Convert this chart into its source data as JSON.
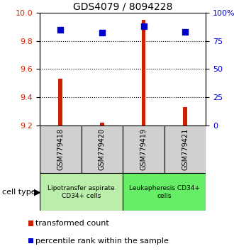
{
  "title": "GDS4079 / 8094228",
  "samples": [
    "GSM779418",
    "GSM779420",
    "GSM779419",
    "GSM779421"
  ],
  "transformed_counts": [
    9.53,
    9.22,
    9.95,
    9.33
  ],
  "percentile_ranks": [
    85,
    82,
    88,
    83
  ],
  "y_min": 9.2,
  "y_max": 10.0,
  "y_ticks": [
    9.2,
    9.4,
    9.6,
    9.8,
    10.0
  ],
  "y2_ticks": [
    0,
    25,
    50,
    75,
    100
  ],
  "y2_tick_labels": [
    "0",
    "25",
    "50",
    "75",
    "100%"
  ],
  "gridlines": [
    9.4,
    9.6,
    9.8
  ],
  "bar_color": "#cc2200",
  "dot_color": "#0000cc",
  "cell_types": [
    {
      "label": "Lipotransfer aspirate\nCD34+ cells",
      "start": 0,
      "end": 2,
      "color": "#bbeeaa"
    },
    {
      "label": "Leukapheresis CD34+\ncells",
      "start": 2,
      "end": 4,
      "color": "#66ee66"
    }
  ],
  "sample_box_color": "#d0d0d0",
  "cell_type_label": "cell type",
  "legend_bar_label": "transformed count",
  "legend_dot_label": "percentile rank within the sample",
  "bar_width": 0.1,
  "dot_size": 30,
  "title_fontsize": 10,
  "tick_fontsize": 8,
  "label_fontsize": 8,
  "sample_fontsize": 7,
  "celltype_fontsize": 6.5
}
